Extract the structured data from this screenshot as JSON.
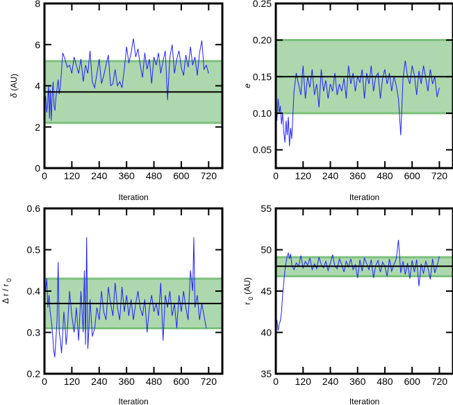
{
  "figure": {
    "colors": {
      "trace": "#1f1fff",
      "band_fill": "#a9d6a9",
      "band_edge": "#7cc07c",
      "median": "#000000",
      "frame": "#000000",
      "background": "#ffffff"
    }
  },
  "chart_data": [
    {
      "id": "delta",
      "type": "line",
      "title": "",
      "xlabel": "Iteration",
      "ylabel_parts": [
        "δ",
        " (AU)"
      ],
      "xlim": [
        0,
        780
      ],
      "ylim": [
        0,
        8
      ],
      "xticks": [
        0,
        120,
        240,
        360,
        480,
        600,
        720
      ],
      "xtick_labels": [
        "0",
        "120",
        "240",
        "360",
        "480",
        "600",
        "720"
      ],
      "yticks": [
        0,
        2,
        4,
        6,
        8
      ],
      "ytick_labels": [
        "0",
        "2",
        "4",
        "6",
        "8"
      ],
      "band": [
        2.2,
        5.2
      ],
      "median": 3.7,
      "grid": false,
      "series": [
        {
          "x": [
            0,
            5,
            10,
            14,
            18,
            22,
            26,
            30,
            34,
            38,
            42,
            46,
            50,
            55,
            60,
            65,
            70,
            80,
            90,
            100,
            110,
            120,
            130,
            140,
            150,
            160,
            170,
            180,
            190,
            200,
            210,
            220,
            230,
            240,
            250,
            260,
            270,
            280,
            290,
            300,
            310,
            320,
            330,
            340,
            350,
            360,
            370,
            380,
            390,
            400,
            410,
            420,
            430,
            440,
            450,
            460,
            470,
            480,
            490,
            500,
            510,
            520,
            530,
            540,
            550,
            560,
            570,
            580,
            590,
            600,
            610,
            620,
            630,
            640,
            650,
            660,
            670,
            680,
            690,
            700,
            710,
            720
          ],
          "y": [
            2.9,
            3.5,
            2.7,
            3.2,
            4.0,
            2.4,
            3.8,
            2.3,
            3.6,
            4.2,
            3.0,
            2.8,
            3.4,
            3.9,
            4.3,
            3.6,
            4.0,
            5.6,
            5.3,
            4.9,
            5.0,
            4.6,
            5.4,
            5.0,
            4.6,
            5.3,
            4.2,
            5.0,
            4.6,
            5.7,
            4.2,
            3.9,
            4.6,
            5.3,
            4.1,
            4.5,
            5.0,
            5.5,
            4.0,
            4.1,
            4.8,
            4.0,
            4.2,
            3.9,
            4.8,
            5.9,
            5.1,
            5.6,
            6.3,
            5.4,
            5.8,
            5.0,
            4.4,
            5.6,
            4.8,
            5.3,
            4.1,
            5.4,
            5.0,
            5.6,
            4.6,
            5.2,
            5.7,
            3.3,
            5.4,
            6.0,
            4.6,
            5.3,
            5.7,
            4.9,
            4.5,
            5.5,
            4.9,
            5.9,
            5.0,
            5.4,
            4.5,
            5.6,
            6.2,
            4.8,
            5.0,
            4.6
          ]
        }
      ]
    },
    {
      "id": "e",
      "type": "line",
      "title": "",
      "xlabel": "Iteration",
      "ylabel_parts": [
        "e",
        ""
      ],
      "xlim": [
        0,
        780
      ],
      "ylim": [
        0.025,
        0.25
      ],
      "xticks": [
        0,
        120,
        240,
        360,
        480,
        600,
        720
      ],
      "xtick_labels": [
        "0",
        "120",
        "240",
        "360",
        "480",
        "600",
        "720"
      ],
      "yticks": [
        0.05,
        0.1,
        0.15,
        0.2,
        0.25
      ],
      "ytick_labels": [
        "0.05",
        "0.10",
        "0.15",
        "0.20",
        "0.25"
      ],
      "band": [
        0.1,
        0.2
      ],
      "median": 0.15,
      "grid": false,
      "series": [
        {
          "x": [
            0,
            5,
            10,
            15,
            20,
            25,
            30,
            35,
            40,
            45,
            50,
            55,
            60,
            65,
            70,
            80,
            90,
            100,
            110,
            120,
            130,
            140,
            150,
            160,
            170,
            180,
            190,
            200,
            210,
            220,
            230,
            240,
            250,
            260,
            270,
            280,
            290,
            300,
            310,
            320,
            330,
            340,
            350,
            360,
            370,
            380,
            390,
            400,
            410,
            420,
            430,
            440,
            450,
            460,
            470,
            480,
            490,
            500,
            510,
            520,
            530,
            540,
            550,
            560,
            570,
            580,
            590,
            600,
            610,
            620,
            630,
            640,
            650,
            660,
            670,
            680,
            690,
            700,
            710,
            720
          ],
          "y": [
            0.11,
            0.09,
            0.12,
            0.1,
            0.11,
            0.085,
            0.1,
            0.075,
            0.06,
            0.09,
            0.07,
            0.095,
            0.055,
            0.08,
            0.065,
            0.13,
            0.155,
            0.14,
            0.125,
            0.165,
            0.12,
            0.15,
            0.135,
            0.16,
            0.125,
            0.14,
            0.108,
            0.16,
            0.13,
            0.145,
            0.12,
            0.14,
            0.13,
            0.155,
            0.125,
            0.14,
            0.13,
            0.148,
            0.12,
            0.165,
            0.14,
            0.155,
            0.13,
            0.15,
            0.142,
            0.16,
            0.12,
            0.155,
            0.14,
            0.165,
            0.13,
            0.15,
            0.155,
            0.12,
            0.148,
            0.16,
            0.14,
            0.155,
            0.13,
            0.15,
            0.138,
            0.12,
            0.07,
            0.148,
            0.172,
            0.15,
            0.14,
            0.165,
            0.152,
            0.125,
            0.158,
            0.14,
            0.165,
            0.148,
            0.13,
            0.16,
            0.14,
            0.15,
            0.122,
            0.135
          ]
        }
      ]
    },
    {
      "id": "dr_over_r0",
      "type": "line",
      "title": "",
      "xlabel": "Iteration",
      "ylabel_parts": [
        "Δ r / r",
        "0"
      ],
      "xlim": [
        0,
        780
      ],
      "ylim": [
        0.2,
        0.6
      ],
      "xticks": [
        0,
        120,
        240,
        360,
        480,
        600,
        720
      ],
      "xtick_labels": [
        "0",
        "120",
        "240",
        "360",
        "480",
        "600",
        "720"
      ],
      "yticks": [
        0.2,
        0.3,
        0.4,
        0.5,
        0.6
      ],
      "ytick_labels": [
        "0.2",
        "0.3",
        "0.4",
        "0.5",
        "0.6"
      ],
      "band": [
        0.31,
        0.43
      ],
      "median": 0.37,
      "grid": false,
      "series": [
        {
          "x": [
            0,
            5,
            10,
            15,
            20,
            25,
            30,
            35,
            40,
            45,
            50,
            55,
            60,
            65,
            70,
            75,
            80,
            85,
            90,
            95,
            100,
            110,
            120,
            130,
            140,
            150,
            160,
            170,
            175,
            180,
            185,
            190,
            195,
            200,
            210,
            220,
            230,
            240,
            250,
            260,
            270,
            280,
            290,
            300,
            310,
            320,
            330,
            340,
            350,
            360,
            370,
            380,
            390,
            400,
            410,
            420,
            430,
            440,
            450,
            460,
            470,
            480,
            490,
            500,
            510,
            520,
            530,
            540,
            550,
            560,
            570,
            580,
            590,
            600,
            610,
            620,
            630,
            640,
            650,
            655,
            660,
            670,
            680,
            690,
            700,
            710
          ],
          "y": [
            0.42,
            0.4,
            0.43,
            0.36,
            0.39,
            0.35,
            0.33,
            0.3,
            0.26,
            0.24,
            0.28,
            0.33,
            0.47,
            0.3,
            0.28,
            0.25,
            0.3,
            0.35,
            0.32,
            0.27,
            0.3,
            0.4,
            0.34,
            0.3,
            0.36,
            0.28,
            0.4,
            0.3,
            0.45,
            0.27,
            0.53,
            0.26,
            0.31,
            0.38,
            0.29,
            0.31,
            0.36,
            0.33,
            0.4,
            0.35,
            0.33,
            0.41,
            0.37,
            0.34,
            0.42,
            0.36,
            0.33,
            0.41,
            0.35,
            0.39,
            0.34,
            0.38,
            0.33,
            0.37,
            0.4,
            0.36,
            0.34,
            0.38,
            0.3,
            0.36,
            0.39,
            0.35,
            0.37,
            0.34,
            0.42,
            0.28,
            0.39,
            0.36,
            0.4,
            0.34,
            0.37,
            0.31,
            0.39,
            0.35,
            0.4,
            0.36,
            0.33,
            0.45,
            0.4,
            0.53,
            0.36,
            0.39,
            0.33,
            0.37,
            0.34,
            0.31
          ]
        }
      ]
    },
    {
      "id": "r0",
      "type": "line",
      "title": "",
      "xlabel": "Iteration",
      "ylabel_parts": [
        "r",
        "0",
        " (AU)"
      ],
      "xlim": [
        0,
        780
      ],
      "ylim": [
        35,
        55
      ],
      "xticks": [
        0,
        120,
        240,
        360,
        480,
        600,
        720
      ],
      "xtick_labels": [
        "0",
        "120",
        "240",
        "360",
        "480",
        "600",
        "720"
      ],
      "yticks": [
        35,
        40,
        45,
        50,
        55
      ],
      "ytick_labels": [
        "35",
        "40",
        "45",
        "50",
        "55"
      ],
      "band": [
        46.8,
        49.1
      ],
      "median": 48.0,
      "grid": false,
      "series": [
        {
          "x": [
            0,
            5,
            10,
            15,
            20,
            25,
            30,
            35,
            40,
            45,
            50,
            55,
            60,
            65,
            70,
            80,
            90,
            100,
            110,
            120,
            130,
            140,
            150,
            160,
            170,
            180,
            190,
            200,
            210,
            220,
            230,
            240,
            250,
            260,
            270,
            280,
            290,
            300,
            310,
            320,
            330,
            340,
            350,
            360,
            370,
            380,
            390,
            400,
            410,
            420,
            430,
            440,
            450,
            460,
            470,
            480,
            490,
            500,
            510,
            520,
            530,
            540,
            550,
            560,
            570,
            580,
            590,
            600,
            610,
            620,
            630,
            640,
            650,
            660,
            670,
            680,
            690,
            700,
            710,
            720
          ],
          "y": [
            40.5,
            41.5,
            40.2,
            41.0,
            41.4,
            42.5,
            44.5,
            46.0,
            47.5,
            48.5,
            49.2,
            49.6,
            48.9,
            49.5,
            48.2,
            47.6,
            48.4,
            48.0,
            49.3,
            47.8,
            48.6,
            48.1,
            49.0,
            47.6,
            48.3,
            47.7,
            49.1,
            48.2,
            47.8,
            48.6,
            47.5,
            48.4,
            49.4,
            48.0,
            47.7,
            48.9,
            48.2,
            47.3,
            48.6,
            47.9,
            48.9,
            47.6,
            48.2,
            46.6,
            48.8,
            47.4,
            49.0,
            48.3,
            47.6,
            48.8,
            46.6,
            48.1,
            48.7,
            47.3,
            48.5,
            48.0,
            46.8,
            48.9,
            47.4,
            48.2,
            48.9,
            51.2,
            47.2,
            48.6,
            47.0,
            48.4,
            46.5,
            48.7,
            47.3,
            48.8,
            45.6,
            48.3,
            47.1,
            48.6,
            47.8,
            46.4,
            48.9,
            47.2,
            48.1,
            49.2
          ]
        }
      ]
    }
  ]
}
